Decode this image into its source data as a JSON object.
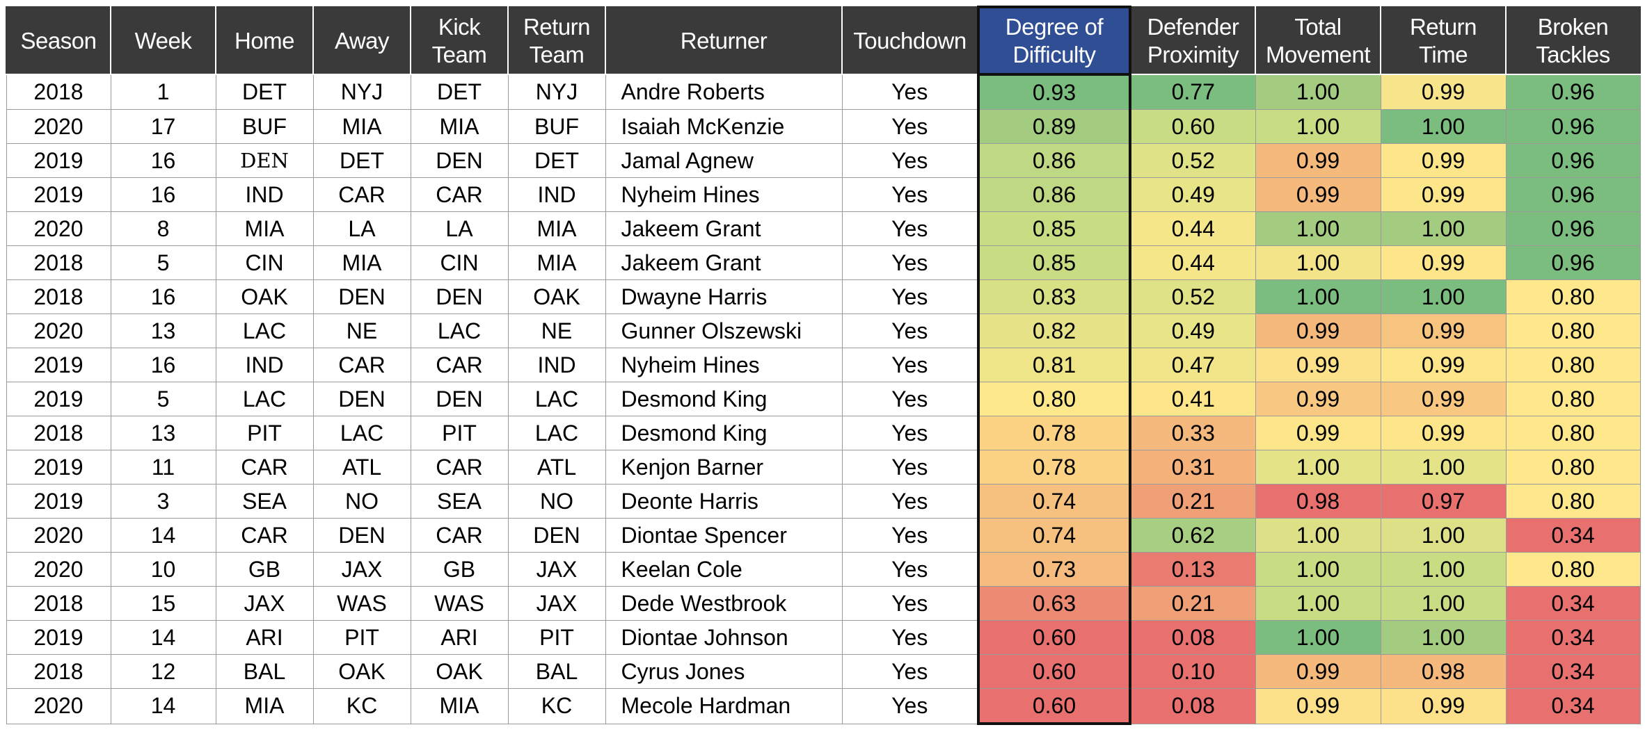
{
  "chart_data": {
    "type": "table",
    "columns": [
      "Season",
      "Week",
      "Home",
      "Away",
      "Kick Team",
      "Return Team",
      "Returner",
      "Touchdown",
      "Degree of Difficulty",
      "Defender Proximity",
      "Total Movement",
      "Return Time",
      "Broken Tackles"
    ],
    "rows": [
      [
        "2018",
        "1",
        "DET",
        "NYJ",
        "DET",
        "NYJ",
        "Andre Roberts",
        "Yes",
        "0.93",
        "0.77",
        "1.00",
        "0.99",
        "0.96"
      ],
      [
        "2020",
        "17",
        "BUF",
        "MIA",
        "MIA",
        "BUF",
        "Isaiah McKenzie",
        "Yes",
        "0.89",
        "0.60",
        "1.00",
        "1.00",
        "0.96"
      ],
      [
        "2019",
        "16",
        "DEN",
        "DET",
        "DEN",
        "DET",
        "Jamal Agnew",
        "Yes",
        "0.86",
        "0.52",
        "0.99",
        "0.99",
        "0.96"
      ],
      [
        "2019",
        "16",
        "IND",
        "CAR",
        "CAR",
        "IND",
        "Nyheim Hines",
        "Yes",
        "0.86",
        "0.49",
        "0.99",
        "0.99",
        "0.96"
      ],
      [
        "2020",
        "8",
        "MIA",
        "LA",
        "LA",
        "MIA",
        "Jakeem Grant",
        "Yes",
        "0.85",
        "0.44",
        "1.00",
        "1.00",
        "0.96"
      ],
      [
        "2018",
        "5",
        "CIN",
        "MIA",
        "CIN",
        "MIA",
        "Jakeem Grant",
        "Yes",
        "0.85",
        "0.44",
        "1.00",
        "0.99",
        "0.96"
      ],
      [
        "2018",
        "16",
        "OAK",
        "DEN",
        "DEN",
        "OAK",
        "Dwayne Harris",
        "Yes",
        "0.83",
        "0.52",
        "1.00",
        "1.00",
        "0.80"
      ],
      [
        "2020",
        "13",
        "LAC",
        "NE",
        "LAC",
        "NE",
        "Gunner Olszewski",
        "Yes",
        "0.82",
        "0.49",
        "0.99",
        "0.99",
        "0.80"
      ],
      [
        "2019",
        "16",
        "IND",
        "CAR",
        "CAR",
        "IND",
        "Nyheim Hines",
        "Yes",
        "0.81",
        "0.47",
        "0.99",
        "0.99",
        "0.80"
      ],
      [
        "2019",
        "5",
        "LAC",
        "DEN",
        "DEN",
        "LAC",
        "Desmond King",
        "Yes",
        "0.80",
        "0.41",
        "0.99",
        "0.99",
        "0.80"
      ],
      [
        "2018",
        "13",
        "PIT",
        "LAC",
        "PIT",
        "LAC",
        "Desmond King",
        "Yes",
        "0.78",
        "0.33",
        "0.99",
        "0.99",
        "0.80"
      ],
      [
        "2019",
        "11",
        "CAR",
        "ATL",
        "CAR",
        "ATL",
        "Kenjon Barner",
        "Yes",
        "0.78",
        "0.31",
        "1.00",
        "1.00",
        "0.80"
      ],
      [
        "2019",
        "3",
        "SEA",
        "NO",
        "SEA",
        "NO",
        "Deonte Harris",
        "Yes",
        "0.74",
        "0.21",
        "0.98",
        "0.97",
        "0.80"
      ],
      [
        "2020",
        "14",
        "CAR",
        "DEN",
        "CAR",
        "DEN",
        "Diontae Spencer",
        "Yes",
        "0.74",
        "0.62",
        "1.00",
        "1.00",
        "0.34"
      ],
      [
        "2020",
        "10",
        "GB",
        "JAX",
        "GB",
        "JAX",
        "Keelan Cole",
        "Yes",
        "0.73",
        "0.13",
        "1.00",
        "1.00",
        "0.80"
      ],
      [
        "2018",
        "15",
        "JAX",
        "WAS",
        "WAS",
        "JAX",
        "Dede Westbrook",
        "Yes",
        "0.63",
        "0.21",
        "1.00",
        "1.00",
        "0.34"
      ],
      [
        "2019",
        "14",
        "ARI",
        "PIT",
        "ARI",
        "PIT",
        "Diontae Johnson",
        "Yes",
        "0.60",
        "0.08",
        "1.00",
        "1.00",
        "0.34"
      ],
      [
        "2018",
        "12",
        "BAL",
        "OAK",
        "OAK",
        "BAL",
        "Cyrus Jones",
        "Yes",
        "0.60",
        "0.10",
        "0.99",
        "0.98",
        "0.34"
      ],
      [
        "2020",
        "14",
        "MIA",
        "KC",
        "MIA",
        "KC",
        "Mecole Hardman",
        "Yes",
        "0.60",
        "0.08",
        "0.99",
        "0.99",
        "0.34"
      ]
    ],
    "cell_colors": [
      [
        "#7abd7e",
        "#7abd7e",
        "#a3cc81",
        "#f7e58b",
        "#7abd7e"
      ],
      [
        "#a3cc81",
        "#c8dc84",
        "#c8dc84",
        "#7abd7e",
        "#7abd7e"
      ],
      [
        "#bfd883",
        "#e0e287",
        "#f5b97c",
        "#fde58a",
        "#7abd7e"
      ],
      [
        "#bfd883",
        "#e8e488",
        "#f5b97c",
        "#fde58a",
        "#7abd7e"
      ],
      [
        "#c8dc84",
        "#f6e68a",
        "#a3cc81",
        "#a3cc81",
        "#7abd7e"
      ],
      [
        "#c8dc84",
        "#f6e68a",
        "#f3e48a",
        "#fde58a",
        "#7abd7e"
      ],
      [
        "#d8e086",
        "#e0e287",
        "#7abd7e",
        "#7abd7e",
        "#ffe88b"
      ],
      [
        "#e6e388",
        "#e8e488",
        "#f5b97c",
        "#f7c480",
        "#ffe88b"
      ],
      [
        "#eee588",
        "#f0e589",
        "#fce08a",
        "#fde58a",
        "#ffe88b"
      ],
      [
        "#fde88b",
        "#fde58a",
        "#f8c781",
        "#f8c781",
        "#ffe88b"
      ],
      [
        "#fcd385",
        "#f6b97d",
        "#fde58a",
        "#fde58a",
        "#ffe88b"
      ],
      [
        "#fcd385",
        "#f5b17a",
        "#e4e388",
        "#e4e388",
        "#ffe88b"
      ],
      [
        "#f6c07f",
        "#f0a077",
        "#e8706e",
        "#e8706e",
        "#ffe88b"
      ],
      [
        "#f6c07f",
        "#a8ce82",
        "#dde087",
        "#dde087",
        "#e8706e"
      ],
      [
        "#f6bb7e",
        "#ea7b70",
        "#c8dc84",
        "#c8dc84",
        "#ffe88b"
      ],
      [
        "#ed8a73",
        "#f0a077",
        "#c8dc84",
        "#c8dc84",
        "#e8706e"
      ],
      [
        "#e8706e",
        "#e8706e",
        "#7abd7e",
        "#a3cc81",
        "#e8706e"
      ],
      [
        "#e8706e",
        "#e8706e",
        "#f5b97c",
        "#f6b97d",
        "#e8706e"
      ],
      [
        "#e8706e",
        "#e8706e",
        "#fce08a",
        "#fce08a",
        "#e8706e"
      ]
    ],
    "highlight_column": "Degree of Difficulty",
    "header_color": "#3a3a3a",
    "highlight_header_color": "#2f4e93"
  }
}
